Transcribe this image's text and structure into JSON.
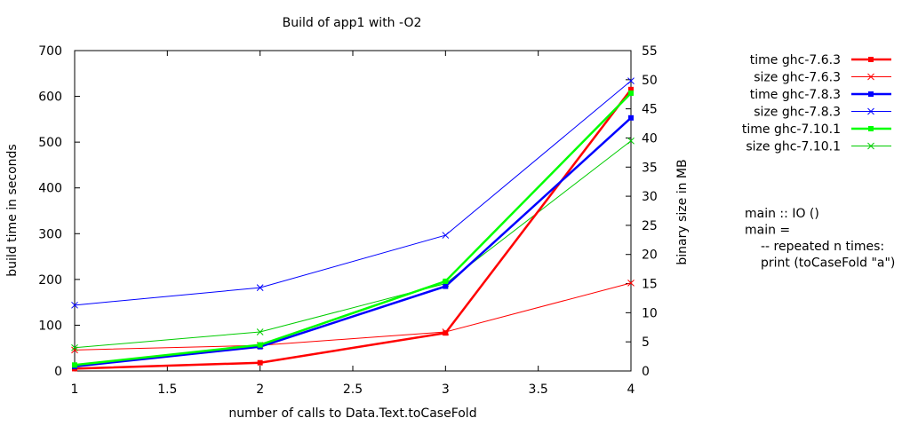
{
  "chart_data": {
    "type": "line",
    "title": "Build of app1 with -O2",
    "xlabel": "number of calls to Data.Text.toCaseFold",
    "ylabel": "build time in seconds",
    "y2label": "binary size in MB",
    "xlim": [
      1,
      4
    ],
    "ylim": [
      0,
      700
    ],
    "y2lim": [
      0,
      55
    ],
    "x_ticks": [
      "1",
      "1.5",
      "2",
      "2.5",
      "3",
      "3.5",
      "4"
    ],
    "y_ticks": [
      "0",
      "100",
      "200",
      "300",
      "400",
      "500",
      "600",
      "700"
    ],
    "y2_ticks": [
      "0",
      "5",
      "10",
      "15",
      "20",
      "25",
      "30",
      "35",
      "40",
      "45",
      "50",
      "55"
    ],
    "grid": false,
    "legend_position": "right",
    "series": [
      {
        "name": "time ghc-7.6.3",
        "axis": "left",
        "marker": "square",
        "color": "#ff0000",
        "bold": true,
        "x": [
          1,
          2,
          3,
          4
        ],
        "values": [
          5,
          18,
          83,
          615
        ]
      },
      {
        "name": "size ghc-7.6.3",
        "axis": "right",
        "marker": "x",
        "color": "#ff0000",
        "bold": false,
        "x": [
          1,
          2,
          3,
          4
        ],
        "values": [
          3.6,
          4.4,
          6.7,
          15.1
        ]
      },
      {
        "name": "time ghc-7.8.3",
        "axis": "left",
        "marker": "square",
        "color": "#0000ff",
        "bold": true,
        "x": [
          1,
          2,
          3,
          4
        ],
        "values": [
          10,
          53,
          185,
          553
        ]
      },
      {
        "name": "size ghc-7.8.3",
        "axis": "right",
        "marker": "x",
        "color": "#0000ff",
        "bold": false,
        "x": [
          1,
          2,
          3,
          4
        ],
        "values": [
          11.3,
          14.3,
          23.3,
          49.8
        ]
      },
      {
        "name": "time ghc-7.10.1",
        "axis": "left",
        "marker": "square",
        "color": "#00ff00",
        "bold": true,
        "x": [
          1,
          2,
          3,
          4
        ],
        "values": [
          13,
          57,
          196,
          607
        ]
      },
      {
        "name": "size ghc-7.10.1",
        "axis": "right",
        "marker": "x",
        "color": "#00cc00",
        "bold": false,
        "x": [
          1,
          2,
          3,
          4
        ],
        "values": [
          4.0,
          6.7,
          15.0,
          39.5
        ]
      }
    ],
    "annotation": [
      "main :: IO ()",
      "main =",
      "    -- repeated n times:",
      "    print (toCaseFold \"a\")"
    ]
  }
}
